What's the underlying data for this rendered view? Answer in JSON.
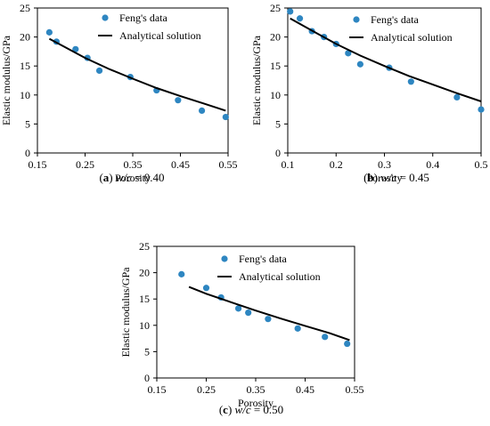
{
  "chart_data": [
    {
      "type": "scatter",
      "caption": "(a) w/c = 0.40",
      "caption_parts": {
        "letter": "a",
        "var": "w/c",
        "value": "= 0.40"
      },
      "xlabel": "Porosity",
      "ylabel": "Elastic modulus/GPa",
      "xlim": [
        0.15,
        0.55
      ],
      "ylim": [
        0,
        25
      ],
      "xticks": [
        "0.15",
        "0.25",
        "0.35",
        "0.45",
        "0.55"
      ],
      "yticks": [
        "0",
        "5",
        "10",
        "15",
        "20",
        "25"
      ],
      "legend_position": "top-right",
      "series": [
        {
          "name": "Feng's data",
          "kind": "markers",
          "color": "#2e86c1",
          "x": [
            0.175,
            0.19,
            0.23,
            0.255,
            0.28,
            0.345,
            0.4,
            0.445,
            0.495,
            0.545
          ],
          "y": [
            20.8,
            19.2,
            17.9,
            16.4,
            14.2,
            13.1,
            10.8,
            9.1,
            7.3,
            6.2
          ]
        },
        {
          "name": "Analytical solution",
          "kind": "line",
          "color": "#000000",
          "x": [
            0.175,
            0.2,
            0.25,
            0.3,
            0.35,
            0.4,
            0.45,
            0.5,
            0.545
          ],
          "y": [
            19.7,
            18.6,
            16.4,
            14.5,
            12.8,
            11.2,
            9.8,
            8.5,
            7.3
          ]
        }
      ]
    },
    {
      "type": "scatter",
      "caption": "(b) w/c = 0.45",
      "caption_parts": {
        "letter": "b",
        "var": "w/c",
        "value": "= 0.45"
      },
      "xlabel": "Porosity",
      "ylabel": "Elastic modulus/GPa",
      "xlim": [
        0.1,
        0.5
      ],
      "ylim": [
        0,
        25
      ],
      "xticks": [
        "0.1",
        "0.2",
        "0.3",
        "0.4",
        "0.5"
      ],
      "yticks": [
        "0",
        "5",
        "10",
        "15",
        "20",
        "25"
      ],
      "legend_position": "top-right",
      "series": [
        {
          "name": "Feng's data",
          "kind": "markers",
          "color": "#2e86c1",
          "x": [
            0.105,
            0.125,
            0.15,
            0.175,
            0.2,
            0.225,
            0.25,
            0.31,
            0.355,
            0.45,
            0.5
          ],
          "y": [
            24.4,
            23.2,
            21.0,
            20.0,
            18.8,
            17.2,
            15.3,
            14.7,
            12.3,
            9.6,
            7.5
          ]
        },
        {
          "name": "Analytical solution",
          "kind": "line",
          "color": "#000000",
          "x": [
            0.105,
            0.15,
            0.2,
            0.25,
            0.3,
            0.35,
            0.4,
            0.45,
            0.5
          ],
          "y": [
            23.2,
            21.1,
            18.8,
            16.8,
            15.0,
            13.3,
            11.8,
            10.3,
            8.9
          ]
        }
      ]
    },
    {
      "type": "scatter",
      "caption": "(c) w/c = 0.50",
      "caption_parts": {
        "letter": "c",
        "var": "w/c",
        "value": "= 0.50"
      },
      "xlabel": "Porosity",
      "ylabel": "Elastic modulus/GPa",
      "xlim": [
        0.15,
        0.55
      ],
      "ylim": [
        0,
        25
      ],
      "xticks": [
        "0.15",
        "0.25",
        "0.35",
        "0.45",
        "0.55"
      ],
      "yticks": [
        "0",
        "5",
        "10",
        "15",
        "20",
        "25"
      ],
      "legend_position": "top-right",
      "series": [
        {
          "name": "Feng's data",
          "kind": "markers",
          "color": "#2e86c1",
          "x": [
            0.2,
            0.25,
            0.28,
            0.315,
            0.335,
            0.375,
            0.435,
            0.49,
            0.535
          ],
          "y": [
            19.7,
            17.1,
            15.3,
            13.2,
            12.4,
            11.2,
            9.4,
            7.8,
            6.5
          ]
        },
        {
          "name": "Analytical solution",
          "kind": "line",
          "color": "#000000",
          "x": [
            0.215,
            0.25,
            0.3,
            0.35,
            0.4,
            0.45,
            0.5,
            0.54
          ],
          "y": [
            17.3,
            16.0,
            14.4,
            12.8,
            11.3,
            9.9,
            8.5,
            7.2
          ]
        }
      ]
    }
  ]
}
